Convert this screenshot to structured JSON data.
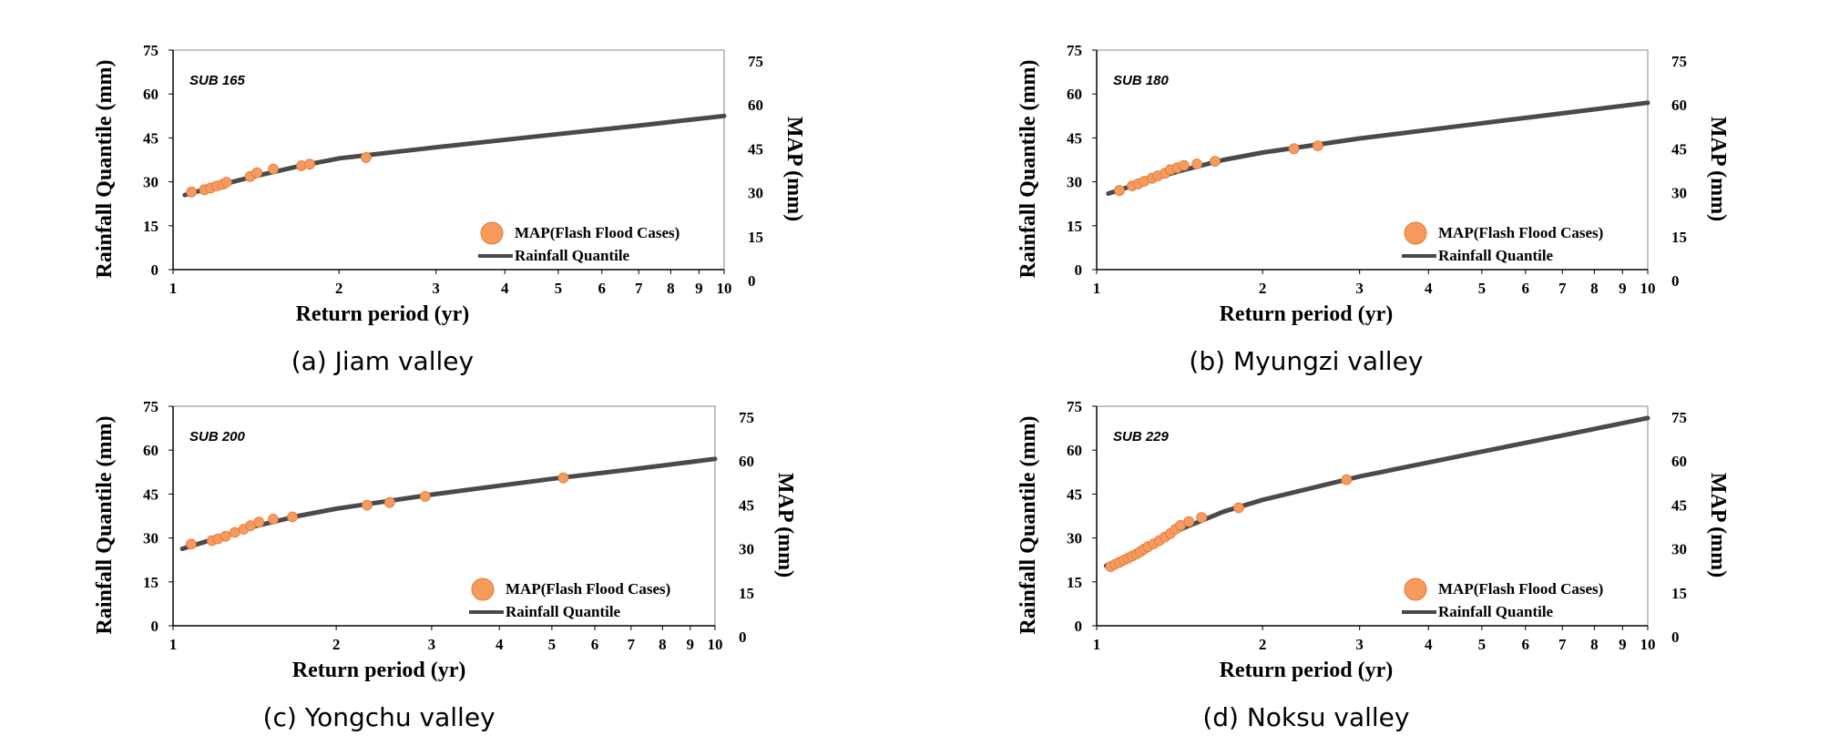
{
  "colors": {
    "quantile": "#4a4a4a",
    "map": "#f79a5e",
    "frame": "#000000"
  },
  "chart_data": [
    {
      "type": "line+scatter",
      "caption": "(a) Jiam valley",
      "sub": "SUB 165",
      "xlabel": "Return period (yr)",
      "ylabel": "Rainfall Quantile (mm)",
      "ylabel_right": "MAP (mm)",
      "xscale": "log",
      "xlim": [
        1,
        10
      ],
      "ylim": [
        0,
        75
      ],
      "xticks": [
        1,
        2,
        3,
        4,
        5,
        6,
        7,
        8,
        9,
        10
      ],
      "yticks": [
        0,
        15,
        30,
        45,
        60,
        75
      ],
      "legend": [
        "MAP(Flash Flood Cases)",
        "Rainfall Quantile"
      ],
      "legend_position": "bottom-right",
      "series": [
        {
          "name": "Rainfall Quantile",
          "x": [
            1.05,
            1.2,
            1.4,
            1.7,
            2.0,
            3.0,
            5.0,
            7.0,
            10.0
          ],
          "y": [
            25.5,
            28.6,
            31.8,
            35.4,
            38.0,
            41.8,
            46.3,
            49.2,
            52.5
          ]
        },
        {
          "name": "MAP(Flash Flood Cases)",
          "x": [
            1.08,
            1.14,
            1.17,
            1.2,
            1.23,
            1.25,
            1.38,
            1.42,
            1.52,
            1.71,
            1.77,
            2.24
          ],
          "y": [
            26.5,
            27.3,
            27.9,
            28.6,
            29.1,
            29.8,
            31.8,
            33.1,
            34.4,
            35.5,
            36.0,
            38.3
          ]
        }
      ]
    },
    {
      "type": "line+scatter",
      "caption": "(b) Myungzi valley",
      "sub": "SUB 180",
      "xlabel": "Return period (yr)",
      "ylabel": "Rainfall Quantile (mm)",
      "ylabel_right": "MAP (mm)",
      "xscale": "log",
      "xlim": [
        1,
        10
      ],
      "ylim": [
        0,
        75
      ],
      "xticks": [
        1,
        2,
        3,
        4,
        5,
        6,
        7,
        8,
        9,
        10
      ],
      "yticks": [
        0,
        15,
        30,
        45,
        60,
        75
      ],
      "legend": [
        "MAP(Flash Flood Cases)",
        "Rainfall Quantile"
      ],
      "legend_position": "bottom-right",
      "series": [
        {
          "name": "Rainfall Quantile",
          "x": [
            1.05,
            1.2,
            1.4,
            1.7,
            2.0,
            3.0,
            5.0,
            7.0,
            10.0
          ],
          "y": [
            26.0,
            29.5,
            33.5,
            37.5,
            40.0,
            44.8,
            50.0,
            53.4,
            57.0
          ]
        },
        {
          "name": "MAP(Flash Flood Cases)",
          "x": [
            1.1,
            1.16,
            1.19,
            1.22,
            1.26,
            1.29,
            1.33,
            1.36,
            1.4,
            1.44,
            1.52,
            1.64,
            2.28,
            2.52
          ],
          "y": [
            27.0,
            28.6,
            29.3,
            30.2,
            31.2,
            32.0,
            32.9,
            34.1,
            34.8,
            35.6,
            36.1,
            37.0,
            41.3,
            42.3
          ]
        }
      ]
    },
    {
      "type": "line+scatter",
      "caption": "(c) Yongchu valley",
      "sub": "SUB 200",
      "xlabel": "Return period (yr)",
      "ylabel": "Rainfall Quantile (mm)",
      "ylabel_right": "MAP (mm)",
      "xscale": "log",
      "xlim": [
        1,
        10
      ],
      "ylim": [
        0,
        75
      ],
      "xticks": [
        1,
        2,
        3,
        4,
        5,
        6,
        7,
        8,
        9,
        10
      ],
      "yticks": [
        0,
        15,
        30,
        45,
        60,
        75
      ],
      "legend": [
        "MAP(Flash Flood Cases)",
        "Rainfall Quantile"
      ],
      "legend_position": "bottom-right",
      "series": [
        {
          "name": "Rainfall Quantile",
          "x": [
            1.04,
            1.2,
            1.4,
            1.7,
            2.0,
            3.0,
            5.0,
            7.0,
            10.0
          ],
          "y": [
            26.3,
            29.8,
            33.8,
            37.5,
            40.0,
            44.8,
            50.2,
            53.4,
            57.0
          ]
        },
        {
          "name": "MAP(Flash Flood Cases)",
          "x": [
            1.08,
            1.18,
            1.21,
            1.25,
            1.3,
            1.35,
            1.39,
            1.44,
            1.53,
            1.66,
            2.28,
            2.51,
            2.92,
            5.25
          ],
          "y": [
            27.9,
            29.1,
            29.7,
            30.6,
            31.9,
            33.0,
            34.2,
            35.4,
            36.4,
            37.2,
            41.2,
            42.1,
            44.2,
            50.5
          ]
        }
      ]
    },
    {
      "type": "line+scatter",
      "caption": "(d) Noksu valley",
      "sub": "SUB 229",
      "xlabel": "Return period (yr)",
      "ylabel": "Rainfall Quantile (mm)",
      "ylabel_right": "MAP (mm)",
      "xscale": "log",
      "xlim": [
        1,
        10
      ],
      "ylim": [
        0,
        75
      ],
      "xticks": [
        1,
        2,
        3,
        4,
        5,
        6,
        7,
        8,
        9,
        10
      ],
      "yticks": [
        0,
        15,
        30,
        45,
        60,
        75
      ],
      "legend": [
        "MAP(Flash Flood Cases)",
        "Rainfall Quantile"
      ],
      "legend_position": "bottom-right",
      "series": [
        {
          "name": "Rainfall Quantile",
          "x": [
            1.04,
            1.2,
            1.4,
            1.7,
            2.0,
            3.0,
            5.0,
            7.0,
            10.0
          ],
          "y": [
            20.5,
            26.0,
            32.5,
            39.0,
            43.0,
            51.0,
            59.5,
            65.0,
            71.0
          ]
        },
        {
          "name": "MAP(Flash Flood Cases)",
          "x": [
            1.06,
            1.08,
            1.1,
            1.12,
            1.14,
            1.16,
            1.18,
            1.2,
            1.22,
            1.24,
            1.27,
            1.3,
            1.33,
            1.36,
            1.39,
            1.42,
            1.47,
            1.55,
            1.81,
            2.84
          ],
          "y": [
            20.2,
            21.0,
            21.7,
            22.4,
            23.1,
            23.8,
            24.5,
            25.3,
            26.2,
            27.0,
            28.0,
            29.1,
            30.3,
            31.5,
            33.0,
            34.3,
            35.6,
            37.0,
            40.3,
            49.9
          ]
        }
      ]
    }
  ]
}
